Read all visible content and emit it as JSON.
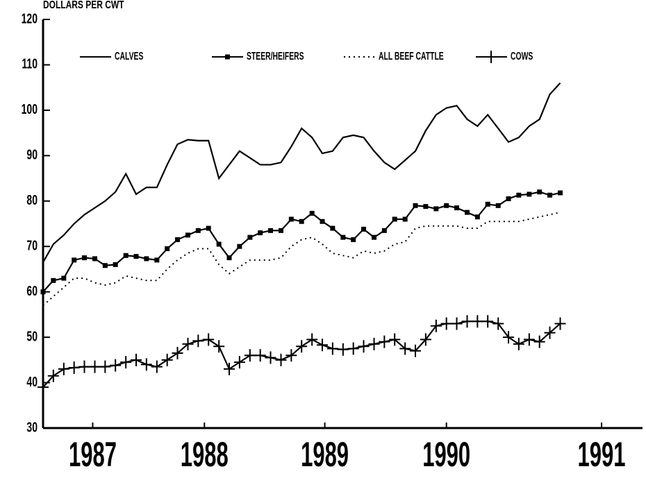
{
  "chart_data": {
    "type": "line",
    "title": "DOLLARS PER CWT",
    "x": [
      1987,
      1987.083,
      1987.167,
      1987.25,
      1987.333,
      1987.417,
      1987.5,
      1987.583,
      1987.667,
      1987.75,
      1987.833,
      1987.917,
      1988,
      1988.083,
      1988.167,
      1988.25,
      1988.333,
      1988.417,
      1988.5,
      1988.583,
      1988.667,
      1988.75,
      1988.833,
      1988.917,
      1989,
      1989.083,
      1989.167,
      1989.25,
      1989.333,
      1989.417,
      1989.5,
      1989.583,
      1989.667,
      1989.75,
      1989.833,
      1989.917,
      1990,
      1990.083,
      1990.167,
      1990.25,
      1990.333,
      1990.417,
      1990.5,
      1990.583,
      1990.667,
      1990.75,
      1990.833,
      1990.917,
      1991,
      1991.083,
      1991.167
    ],
    "series": [
      {
        "name": "CALVES",
        "color": "#000000",
        "style": "solid",
        "marker": "none",
        "values": [
          66.5,
          70.5,
          72.5,
          75,
          77,
          78.5,
          80,
          82,
          86,
          81.5,
          83,
          83,
          88,
          92.5,
          93.5,
          93.3,
          93.3,
          85,
          88,
          91,
          89.5,
          88,
          88,
          88.5,
          92,
          96,
          94,
          90.5,
          91,
          94,
          94.5,
          94,
          91,
          88.5,
          87,
          89,
          91,
          95.5,
          99,
          100.5,
          101,
          98,
          96.5,
          99,
          96,
          93,
          94,
          96.5,
          98,
          103.5,
          106
        ]
      },
      {
        "name": "STEER/HEIFERS",
        "color": "#000000",
        "style": "solid",
        "marker": "square",
        "values": [
          60,
          62.5,
          63,
          67,
          67.5,
          67.3,
          65.8,
          66,
          68,
          67.8,
          67.3,
          67,
          69.5,
          71.5,
          72.5,
          73.5,
          74,
          70.5,
          67.5,
          70,
          72,
          73,
          73.5,
          73.5,
          76,
          75.5,
          77.3,
          75.5,
          74,
          72,
          71.5,
          73.8,
          72,
          73.5,
          76,
          76,
          79,
          78.8,
          78.3,
          79,
          78.5,
          77.5,
          76.5,
          79.3,
          79,
          80.5,
          81.3,
          81.5,
          82,
          81.3,
          81.8
        ]
      },
      {
        "name": "ALL BEEF CATTLE",
        "color": "#000000",
        "style": "dotted",
        "marker": "none",
        "values": [
          57,
          59,
          61,
          63,
          63,
          62,
          61.5,
          62,
          63.5,
          63,
          62.5,
          62.5,
          65,
          67,
          68.5,
          69.5,
          69.5,
          66,
          64,
          65.5,
          67,
          67,
          67,
          67.5,
          70,
          71.5,
          72,
          70.5,
          68.5,
          68,
          67.5,
          69,
          68.5,
          69,
          70.5,
          71,
          74,
          74.5,
          74.5,
          74.5,
          74.5,
          74,
          74,
          75.5,
          75.5,
          75.5,
          75.5,
          76,
          76.5,
          77,
          77.5
        ]
      },
      {
        "name": "COWS",
        "color": "#000000",
        "style": "solid",
        "marker": "plus",
        "values": [
          39,
          41.5,
          43,
          43.3,
          43.5,
          43.5,
          43.5,
          43.8,
          44.5,
          45,
          44,
          43.5,
          45,
          46.5,
          48.5,
          49.2,
          49.5,
          48,
          43,
          44.5,
          46,
          46,
          45.5,
          45,
          46,
          48,
          49.5,
          48.3,
          47.5,
          47.3,
          47.5,
          48,
          48.5,
          49,
          49.5,
          47.5,
          47,
          49.5,
          52.5,
          53,
          53,
          53.5,
          53.5,
          53.5,
          53,
          50,
          48.5,
          49.5,
          49,
          51,
          53
        ]
      }
    ],
    "xlim": [
      1987,
      1991.83
    ],
    "xticks": [
      {
        "value": 1987.4,
        "label": "1987"
      },
      {
        "value": 1988.3,
        "label": "1988"
      },
      {
        "value": 1989.27,
        "label": "1989"
      },
      {
        "value": 1990.25,
        "label": "1990"
      },
      {
        "value": 1991.5,
        "label": "1991"
      }
    ],
    "ylim": [
      30,
      120
    ],
    "yticks": [
      30,
      40,
      50,
      60,
      70,
      80,
      90,
      100,
      110,
      120
    ],
    "legend": "top"
  }
}
